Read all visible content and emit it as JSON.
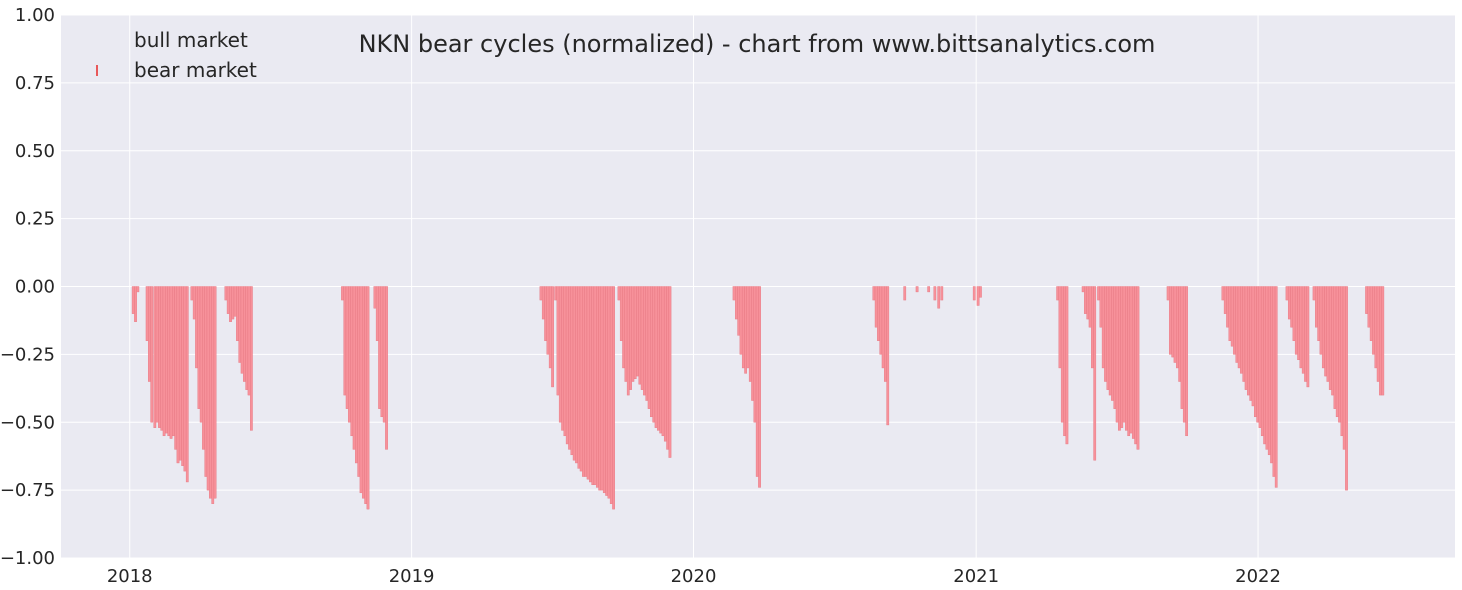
{
  "chart_data": {
    "type": "bar",
    "title": "NKN bear cycles (normalized)  - chart from www.bittsanalytics.com",
    "xlabel": "",
    "ylabel": "",
    "ylim": [
      -1.0,
      1.0
    ],
    "xlim": [
      "2017-10-04",
      "2022-09-13"
    ],
    "grid": true,
    "legend_position": "top-left",
    "y_ticks": [
      "1.00",
      "0.75",
      "0.50",
      "0.25",
      "0.00",
      "−0.25",
      "−0.50",
      "−0.75",
      "−1.00"
    ],
    "x_ticks": [
      {
        "date": "2018-01-01",
        "label": "2018"
      },
      {
        "date": "2019-01-01",
        "label": "2019"
      },
      {
        "date": "2020-01-01",
        "label": "2020"
      },
      {
        "date": "2021-01-01",
        "label": "2021"
      },
      {
        "date": "2022-01-01",
        "label": "2022"
      }
    ],
    "series": [
      {
        "name": "bull market",
        "color": "#4caf50",
        "values": []
      },
      {
        "name": "bear market",
        "color": "#f08080",
        "points": [
          [
            "2018-01-04",
            -0.1
          ],
          [
            "2018-01-07",
            -0.13
          ],
          [
            "2018-01-10",
            -0.02
          ],
          [
            "2018-01-22",
            -0.2
          ],
          [
            "2018-01-25",
            -0.35
          ],
          [
            "2018-01-28",
            -0.5
          ],
          [
            "2018-02-01",
            -0.52
          ],
          [
            "2018-02-04",
            -0.5
          ],
          [
            "2018-02-07",
            -0.52
          ],
          [
            "2018-02-10",
            -0.53
          ],
          [
            "2018-02-13",
            -0.55
          ],
          [
            "2018-02-16",
            -0.54
          ],
          [
            "2018-02-19",
            -0.55
          ],
          [
            "2018-02-22",
            -0.56
          ],
          [
            "2018-02-25",
            -0.55
          ],
          [
            "2018-02-28",
            -0.6
          ],
          [
            "2018-03-03",
            -0.65
          ],
          [
            "2018-03-06",
            -0.64
          ],
          [
            "2018-03-09",
            -0.66
          ],
          [
            "2018-03-12",
            -0.68
          ],
          [
            "2018-03-15",
            -0.72
          ],
          [
            "2018-03-21",
            -0.05
          ],
          [
            "2018-03-24",
            -0.12
          ],
          [
            "2018-03-27",
            -0.3
          ],
          [
            "2018-03-30",
            -0.45
          ],
          [
            "2018-04-02",
            -0.5
          ],
          [
            "2018-04-05",
            -0.6
          ],
          [
            "2018-04-08",
            -0.7
          ],
          [
            "2018-04-11",
            -0.75
          ],
          [
            "2018-04-14",
            -0.78
          ],
          [
            "2018-04-17",
            -0.8
          ],
          [
            "2018-04-20",
            -0.78
          ],
          [
            "2018-05-04",
            -0.05
          ],
          [
            "2018-05-07",
            -0.1
          ],
          [
            "2018-05-10",
            -0.13
          ],
          [
            "2018-05-13",
            -0.12
          ],
          [
            "2018-05-16",
            -0.11
          ],
          [
            "2018-05-19",
            -0.2
          ],
          [
            "2018-05-22",
            -0.28
          ],
          [
            "2018-05-25",
            -0.32
          ],
          [
            "2018-05-28",
            -0.35
          ],
          [
            "2018-05-31",
            -0.38
          ],
          [
            "2018-06-03",
            -0.4
          ],
          [
            "2018-06-06",
            -0.53
          ],
          [
            "2018-10-02",
            -0.05
          ],
          [
            "2018-10-05",
            -0.4
          ],
          [
            "2018-10-08",
            -0.45
          ],
          [
            "2018-10-11",
            -0.5
          ],
          [
            "2018-10-14",
            -0.55
          ],
          [
            "2018-10-17",
            -0.6
          ],
          [
            "2018-10-20",
            -0.65
          ],
          [
            "2018-10-23",
            -0.7
          ],
          [
            "2018-10-26",
            -0.76
          ],
          [
            "2018-10-29",
            -0.78
          ],
          [
            "2018-11-01",
            -0.8
          ],
          [
            "2018-11-04",
            -0.82
          ],
          [
            "2018-11-13",
            -0.08
          ],
          [
            "2018-11-16",
            -0.2
          ],
          [
            "2018-11-19",
            -0.45
          ],
          [
            "2018-11-22",
            -0.48
          ],
          [
            "2018-11-25",
            -0.5
          ],
          [
            "2018-11-28",
            -0.6
          ],
          [
            "2019-06-16",
            -0.05
          ],
          [
            "2019-06-19",
            -0.12
          ],
          [
            "2019-06-22",
            -0.2
          ],
          [
            "2019-06-25",
            -0.25
          ],
          [
            "2019-06-28",
            -0.3
          ],
          [
            "2019-07-01",
            -0.37
          ],
          [
            "2019-07-05",
            -0.05
          ],
          [
            "2019-07-08",
            -0.4
          ],
          [
            "2019-07-11",
            -0.5
          ],
          [
            "2019-07-14",
            -0.53
          ],
          [
            "2019-07-17",
            -0.55
          ],
          [
            "2019-07-20",
            -0.58
          ],
          [
            "2019-07-23",
            -0.6
          ],
          [
            "2019-07-26",
            -0.62
          ],
          [
            "2019-07-29",
            -0.64
          ],
          [
            "2019-08-01",
            -0.65
          ],
          [
            "2019-08-04",
            -0.67
          ],
          [
            "2019-08-07",
            -0.68
          ],
          [
            "2019-08-10",
            -0.7
          ],
          [
            "2019-08-13",
            -0.7
          ],
          [
            "2019-08-16",
            -0.71
          ],
          [
            "2019-08-19",
            -0.72
          ],
          [
            "2019-08-22",
            -0.73
          ],
          [
            "2019-08-25",
            -0.73
          ],
          [
            "2019-08-28",
            -0.74
          ],
          [
            "2019-08-31",
            -0.75
          ],
          [
            "2019-09-03",
            -0.75
          ],
          [
            "2019-09-06",
            -0.76
          ],
          [
            "2019-09-09",
            -0.77
          ],
          [
            "2019-09-12",
            -0.78
          ],
          [
            "2019-09-15",
            -0.8
          ],
          [
            "2019-09-18",
            -0.82
          ],
          [
            "2019-09-25",
            -0.05
          ],
          [
            "2019-09-28",
            -0.2
          ],
          [
            "2019-10-01",
            -0.3
          ],
          [
            "2019-10-04",
            -0.35
          ],
          [
            "2019-10-07",
            -0.4
          ],
          [
            "2019-10-10",
            -0.38
          ],
          [
            "2019-10-13",
            -0.35
          ],
          [
            "2019-10-16",
            -0.34
          ],
          [
            "2019-10-19",
            -0.33
          ],
          [
            "2019-10-22",
            -0.36
          ],
          [
            "2019-10-25",
            -0.38
          ],
          [
            "2019-10-28",
            -0.4
          ],
          [
            "2019-10-31",
            -0.42
          ],
          [
            "2019-11-03",
            -0.45
          ],
          [
            "2019-11-06",
            -0.48
          ],
          [
            "2019-11-09",
            -0.5
          ],
          [
            "2019-11-12",
            -0.52
          ],
          [
            "2019-11-15",
            -0.53
          ],
          [
            "2019-11-18",
            -0.54
          ],
          [
            "2019-11-21",
            -0.55
          ],
          [
            "2019-11-24",
            -0.57
          ],
          [
            "2019-11-27",
            -0.6
          ],
          [
            "2019-11-30",
            -0.63
          ],
          [
            "2020-02-21",
            -0.05
          ],
          [
            "2020-02-24",
            -0.12
          ],
          [
            "2020-02-27",
            -0.18
          ],
          [
            "2020-03-01",
            -0.25
          ],
          [
            "2020-03-04",
            -0.3
          ],
          [
            "2020-03-07",
            -0.32
          ],
          [
            "2020-03-10",
            -0.3
          ],
          [
            "2020-03-13",
            -0.35
          ],
          [
            "2020-03-16",
            -0.42
          ],
          [
            "2020-03-19",
            -0.5
          ],
          [
            "2020-03-22",
            -0.7
          ],
          [
            "2020-03-25",
            -0.74
          ],
          [
            "2020-08-20",
            -0.05
          ],
          [
            "2020-08-23",
            -0.15
          ],
          [
            "2020-08-26",
            -0.2
          ],
          [
            "2020-08-29",
            -0.25
          ],
          [
            "2020-09-01",
            -0.3
          ],
          [
            "2020-09-04",
            -0.35
          ],
          [
            "2020-09-07",
            -0.51
          ],
          [
            "2020-09-29",
            -0.05
          ],
          [
            "2020-10-15",
            -0.02
          ],
          [
            "2020-10-30",
            -0.02
          ],
          [
            "2020-11-07",
            -0.05
          ],
          [
            "2020-11-12",
            -0.08
          ],
          [
            "2020-11-16",
            -0.05
          ],
          [
            "2020-12-28",
            -0.05
          ],
          [
            "2021-01-02",
            -0.07
          ],
          [
            "2021-01-05",
            -0.04
          ],
          [
            "2021-04-15",
            -0.05
          ],
          [
            "2021-04-18",
            -0.3
          ],
          [
            "2021-04-21",
            -0.5
          ],
          [
            "2021-04-24",
            -0.55
          ],
          [
            "2021-04-27",
            -0.58
          ],
          [
            "2021-05-18",
            -0.02
          ],
          [
            "2021-05-21",
            -0.1
          ],
          [
            "2021-05-24",
            -0.12
          ],
          [
            "2021-05-27",
            -0.15
          ],
          [
            "2021-05-30",
            -0.3
          ],
          [
            "2021-06-02",
            -0.64
          ],
          [
            "2021-06-07",
            -0.05
          ],
          [
            "2021-06-10",
            -0.15
          ],
          [
            "2021-06-13",
            -0.3
          ],
          [
            "2021-06-16",
            -0.35
          ],
          [
            "2021-06-19",
            -0.38
          ],
          [
            "2021-06-22",
            -0.4
          ],
          [
            "2021-06-25",
            -0.42
          ],
          [
            "2021-06-28",
            -0.45
          ],
          [
            "2021-07-01",
            -0.5
          ],
          [
            "2021-07-04",
            -0.53
          ],
          [
            "2021-07-07",
            -0.52
          ],
          [
            "2021-07-10",
            -0.5
          ],
          [
            "2021-07-13",
            -0.53
          ],
          [
            "2021-07-16",
            -0.55
          ],
          [
            "2021-07-19",
            -0.54
          ],
          [
            "2021-07-22",
            -0.56
          ],
          [
            "2021-07-25",
            -0.58
          ],
          [
            "2021-07-28",
            -0.6
          ],
          [
            "2021-09-05",
            -0.05
          ],
          [
            "2021-09-08",
            -0.25
          ],
          [
            "2021-09-11",
            -0.26
          ],
          [
            "2021-09-14",
            -0.28
          ],
          [
            "2021-09-17",
            -0.3
          ],
          [
            "2021-09-20",
            -0.35
          ],
          [
            "2021-09-23",
            -0.45
          ],
          [
            "2021-09-26",
            -0.5
          ],
          [
            "2021-09-29",
            -0.55
          ],
          [
            "2021-11-15",
            -0.05
          ],
          [
            "2021-11-18",
            -0.1
          ],
          [
            "2021-11-21",
            -0.15
          ],
          [
            "2021-11-24",
            -0.2
          ],
          [
            "2021-11-27",
            -0.22
          ],
          [
            "2021-11-30",
            -0.25
          ],
          [
            "2021-12-03",
            -0.28
          ],
          [
            "2021-12-06",
            -0.3
          ],
          [
            "2021-12-09",
            -0.32
          ],
          [
            "2021-12-12",
            -0.35
          ],
          [
            "2021-12-15",
            -0.38
          ],
          [
            "2021-12-18",
            -0.4
          ],
          [
            "2021-12-21",
            -0.42
          ],
          [
            "2021-12-24",
            -0.44
          ],
          [
            "2021-12-27",
            -0.48
          ],
          [
            "2021-12-30",
            -0.5
          ],
          [
            "2022-01-02",
            -0.52
          ],
          [
            "2022-01-05",
            -0.55
          ],
          [
            "2022-01-08",
            -0.58
          ],
          [
            "2022-01-11",
            -0.6
          ],
          [
            "2022-01-14",
            -0.62
          ],
          [
            "2022-01-17",
            -0.65
          ],
          [
            "2022-01-20",
            -0.7
          ],
          [
            "2022-01-23",
            -0.74
          ],
          [
            "2022-02-06",
            -0.05
          ],
          [
            "2022-02-09",
            -0.12
          ],
          [
            "2022-02-12",
            -0.15
          ],
          [
            "2022-02-15",
            -0.2
          ],
          [
            "2022-02-18",
            -0.25
          ],
          [
            "2022-02-21",
            -0.27
          ],
          [
            "2022-02-24",
            -0.3
          ],
          [
            "2022-02-27",
            -0.32
          ],
          [
            "2022-03-02",
            -0.35
          ],
          [
            "2022-03-05",
            -0.37
          ],
          [
            "2022-03-13",
            -0.05
          ],
          [
            "2022-03-16",
            -0.15
          ],
          [
            "2022-03-19",
            -0.2
          ],
          [
            "2022-03-22",
            -0.25
          ],
          [
            "2022-03-25",
            -0.3
          ],
          [
            "2022-03-28",
            -0.33
          ],
          [
            "2022-03-31",
            -0.35
          ],
          [
            "2022-04-03",
            -0.38
          ],
          [
            "2022-04-06",
            -0.4
          ],
          [
            "2022-04-09",
            -0.45
          ],
          [
            "2022-04-12",
            -0.48
          ],
          [
            "2022-04-15",
            -0.5
          ],
          [
            "2022-04-18",
            -0.55
          ],
          [
            "2022-04-21",
            -0.6
          ],
          [
            "2022-04-24",
            -0.75
          ],
          [
            "2022-05-20",
            -0.1
          ],
          [
            "2022-05-23",
            -0.15
          ],
          [
            "2022-05-26",
            -0.2
          ],
          [
            "2022-05-29",
            -0.25
          ],
          [
            "2022-06-01",
            -0.3
          ],
          [
            "2022-06-04",
            -0.35
          ],
          [
            "2022-06-07",
            -0.4
          ],
          [
            "2022-06-10",
            -0.4
          ]
        ]
      }
    ]
  }
}
